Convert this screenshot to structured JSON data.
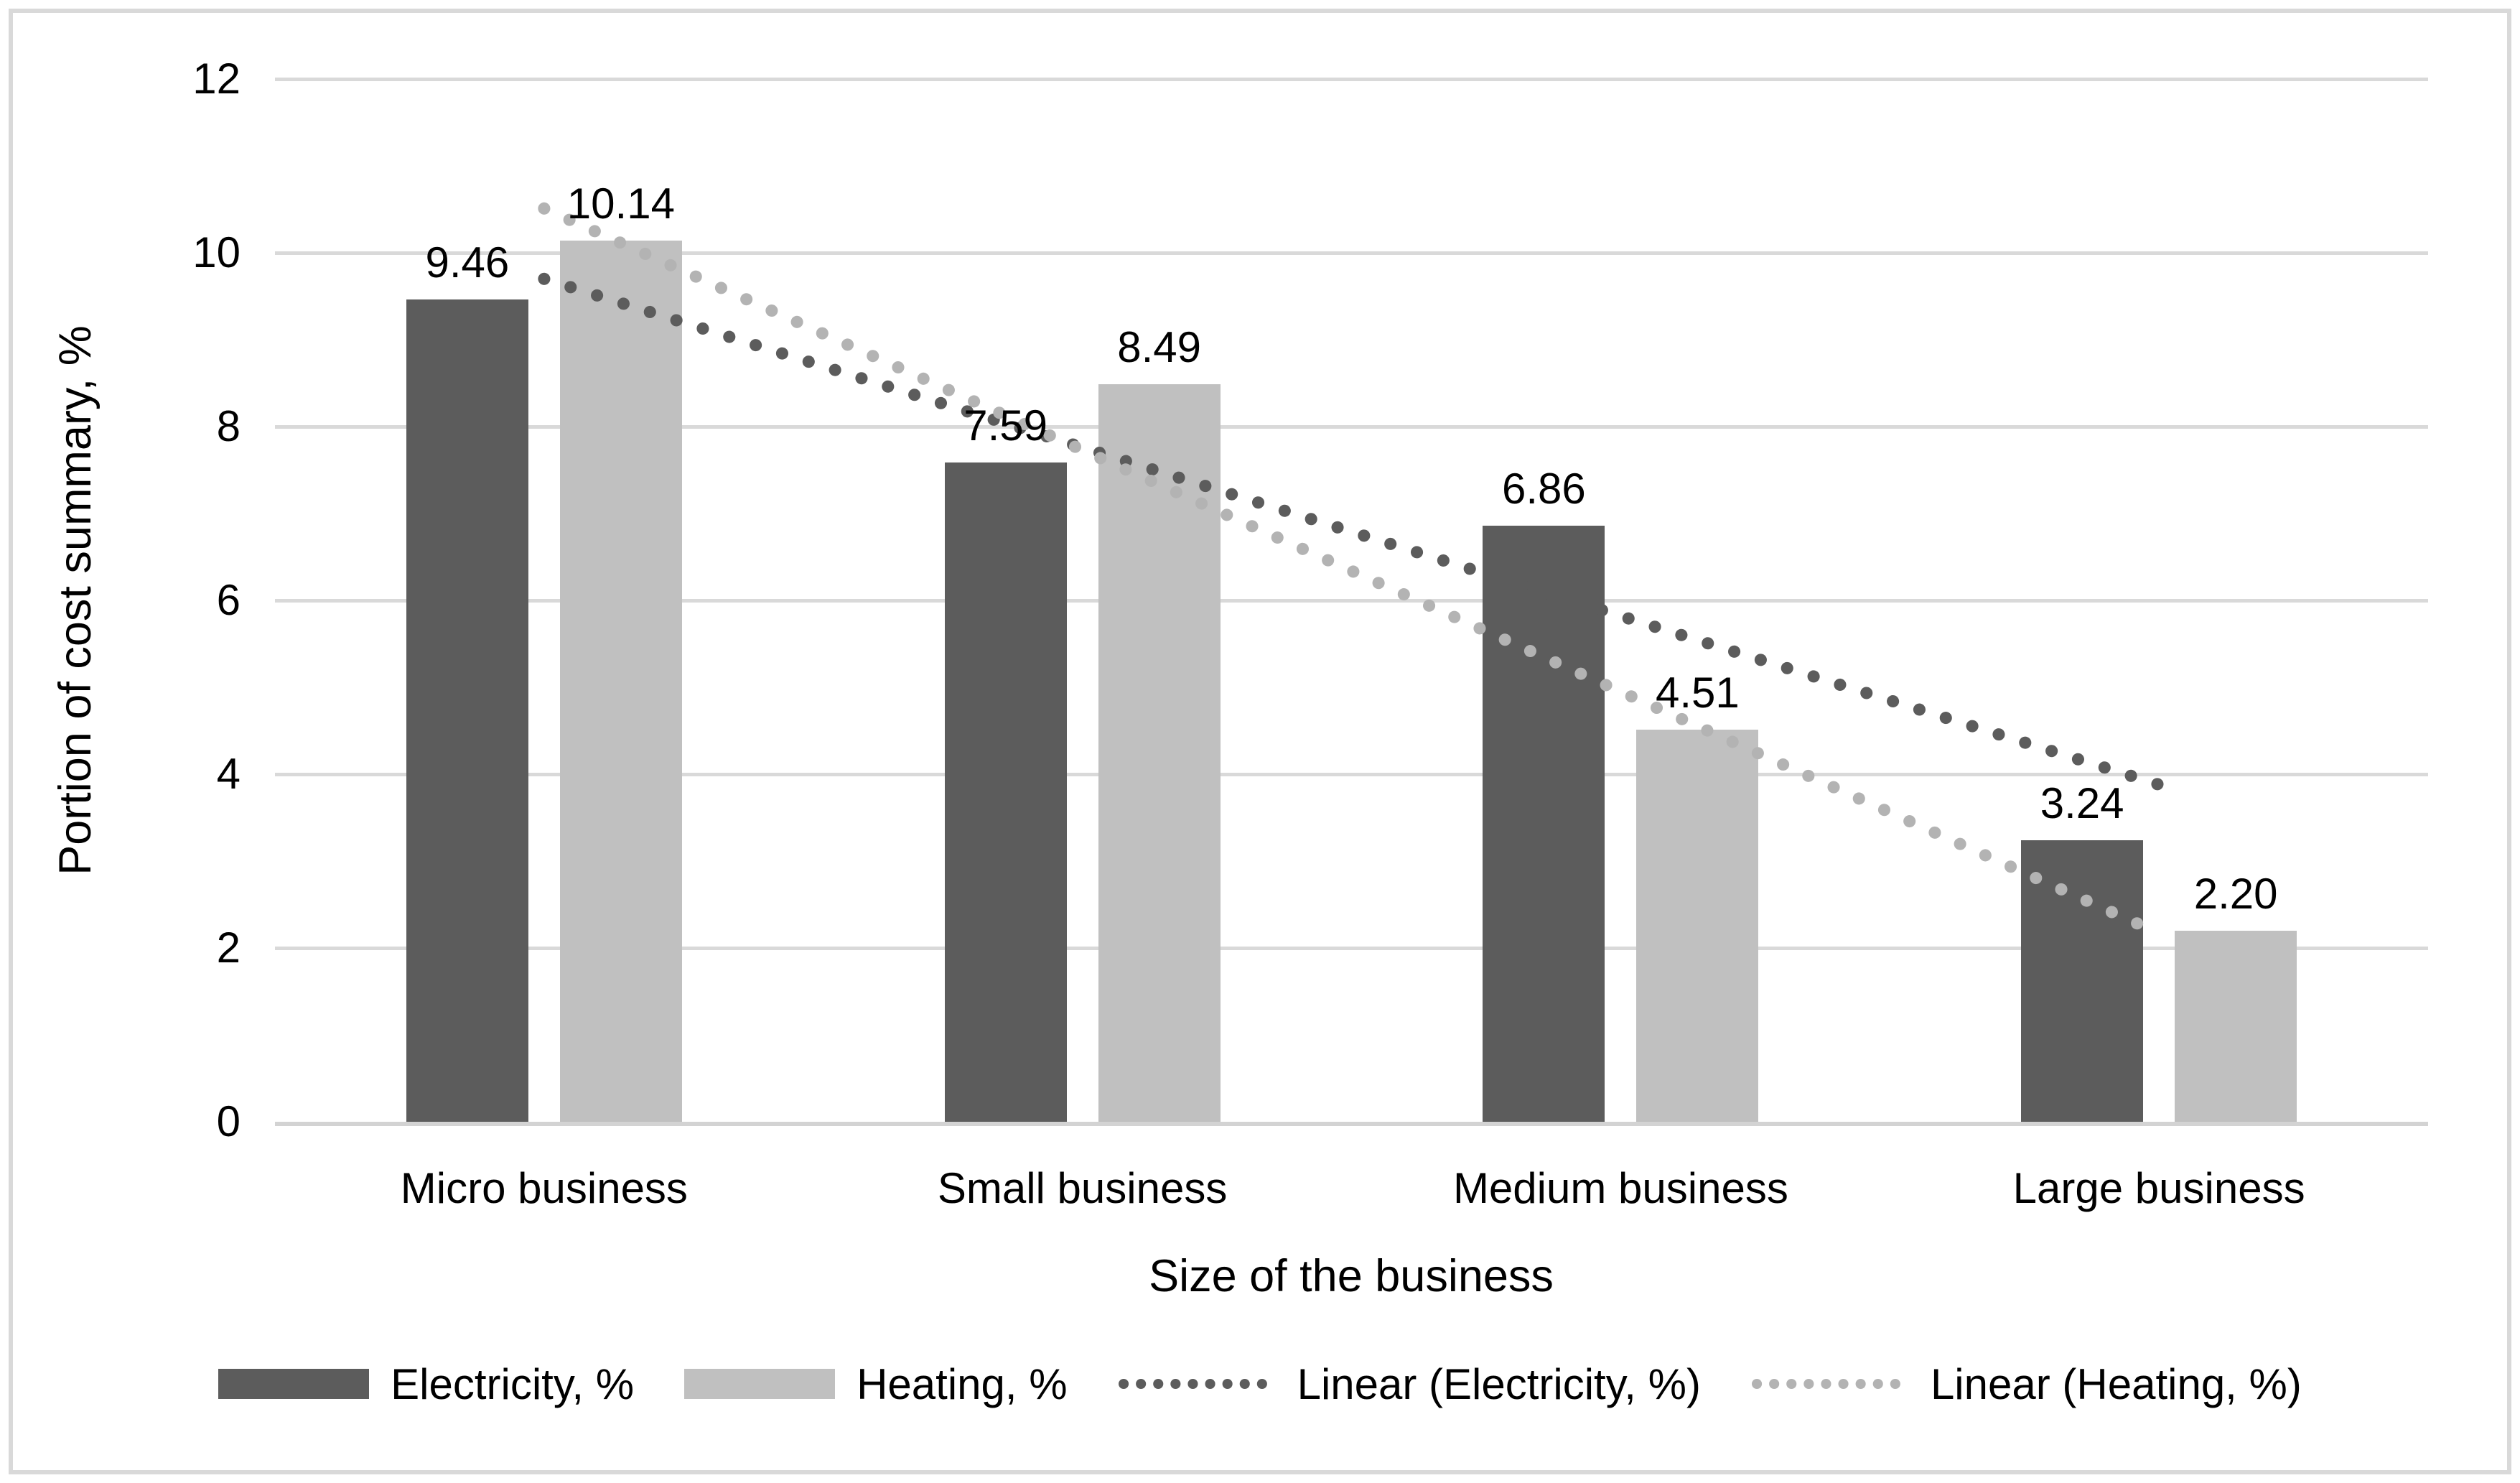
{
  "figure": {
    "background": "#ffffff",
    "border_color": "#d9d9d9"
  },
  "chart_data": {
    "type": "bar",
    "title": "",
    "categories": [
      "Micro business",
      "Small business",
      "Medium business",
      "Large business"
    ],
    "series": [
      {
        "name": "Electricity, %",
        "values": [
          9.46,
          7.59,
          6.86,
          3.24
        ],
        "labels": [
          "9.46",
          "7.59",
          "6.86",
          "3.24"
        ],
        "color": "#5c5c5c"
      },
      {
        "name": "Heating, %",
        "values": [
          10.14,
          8.49,
          4.51,
          2.2
        ],
        "labels": [
          "10.14",
          "8.49",
          "4.51",
          "2.20"
        ],
        "color": "#c0c0c0"
      }
    ],
    "trendlines": [
      {
        "name": "Linear (Electricity, %)",
        "color": "#5c5c5c",
        "start": 9.7,
        "end": 3.88,
        "style": "dotted"
      },
      {
        "name": "Linear (Heating, %)",
        "color": "#b3b3b3",
        "start": 10.51,
        "end": 2.17,
        "style": "dotted"
      }
    ],
    "xlabel": "Size of the business",
    "ylabel": "Portion of cost summary, %",
    "ylim": [
      0,
      12
    ],
    "yticks": [
      0,
      2,
      4,
      6,
      8,
      10,
      12
    ],
    "grid": true,
    "gridline_color": "#d9d9d9",
    "axisline_color": "#d3d3d3",
    "legend_position": "bottom",
    "legend": [
      "Electricity, %",
      "Heating, %",
      "Linear (Electricity, %)",
      "Linear (Heating, %)"
    ]
  }
}
